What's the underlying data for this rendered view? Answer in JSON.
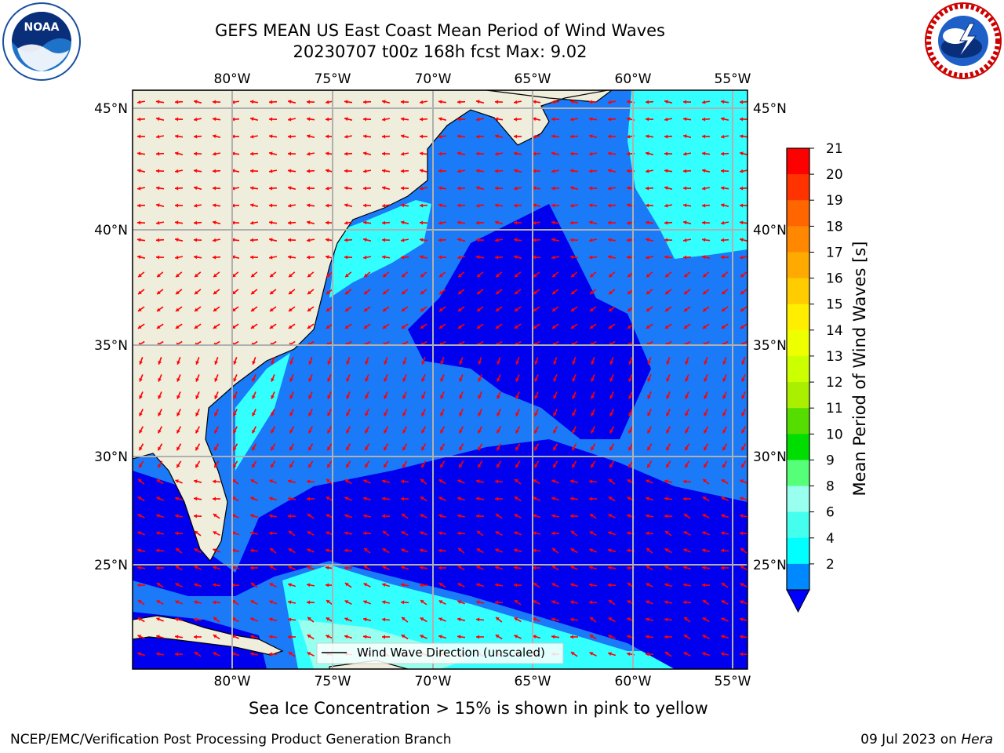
{
  "title_line1": "GEFS MEAN US East Coast Mean Period of Wind Waves",
  "title_line2": "20230707 t00z 168h fcst   Max: 9.02",
  "colorbar": {
    "label": "Mean Period of Wind Waves [s]",
    "ticks": [
      "21",
      "20",
      "19",
      "18",
      "17",
      "16",
      "15",
      "14",
      "13",
      "12",
      "11",
      "10",
      "9",
      "8",
      "6",
      "4",
      "2"
    ],
    "colors": [
      "#ff0000",
      "#ff3300",
      "#ff6600",
      "#ff8800",
      "#ffaa00",
      "#ffcc00",
      "#ffee00",
      "#eeff00",
      "#ccff00",
      "#aaee00",
      "#55dd00",
      "#00dd00",
      "#55ff77",
      "#99ffee",
      "#44ffee",
      "#00ffff",
      "#0088ff"
    ],
    "extend_color": "#0000ff"
  },
  "map": {
    "lon_labels": [
      "80°W",
      "75°W",
      "70°W",
      "65°W",
      "60°W",
      "55°W"
    ],
    "lat_labels": [
      "45°N",
      "40°N",
      "35°N",
      "30°N",
      "25°N"
    ],
    "legend": "Wind Wave Direction (unscaled)",
    "colors": {
      "land": "#efeddc",
      "deep": "#0000ee",
      "mid": "#1a7af7",
      "light": "#33ffff",
      "pale": "#99ffee",
      "arrow": "#ff0000",
      "grid": "#b0b0b0"
    }
  },
  "sea_ice_note": "Sea Ice Concentration > 15% is shown in pink to yellow",
  "footer_left": "NCEP/EMC/Verification Post Processing Product Generation Branch",
  "footer_right_date": "09 Jul 2023 on ",
  "footer_right_host": "Hera",
  "logos": {
    "noaa": "NOAA",
    "nws": "NATIONAL WEATHER SERVICE"
  }
}
